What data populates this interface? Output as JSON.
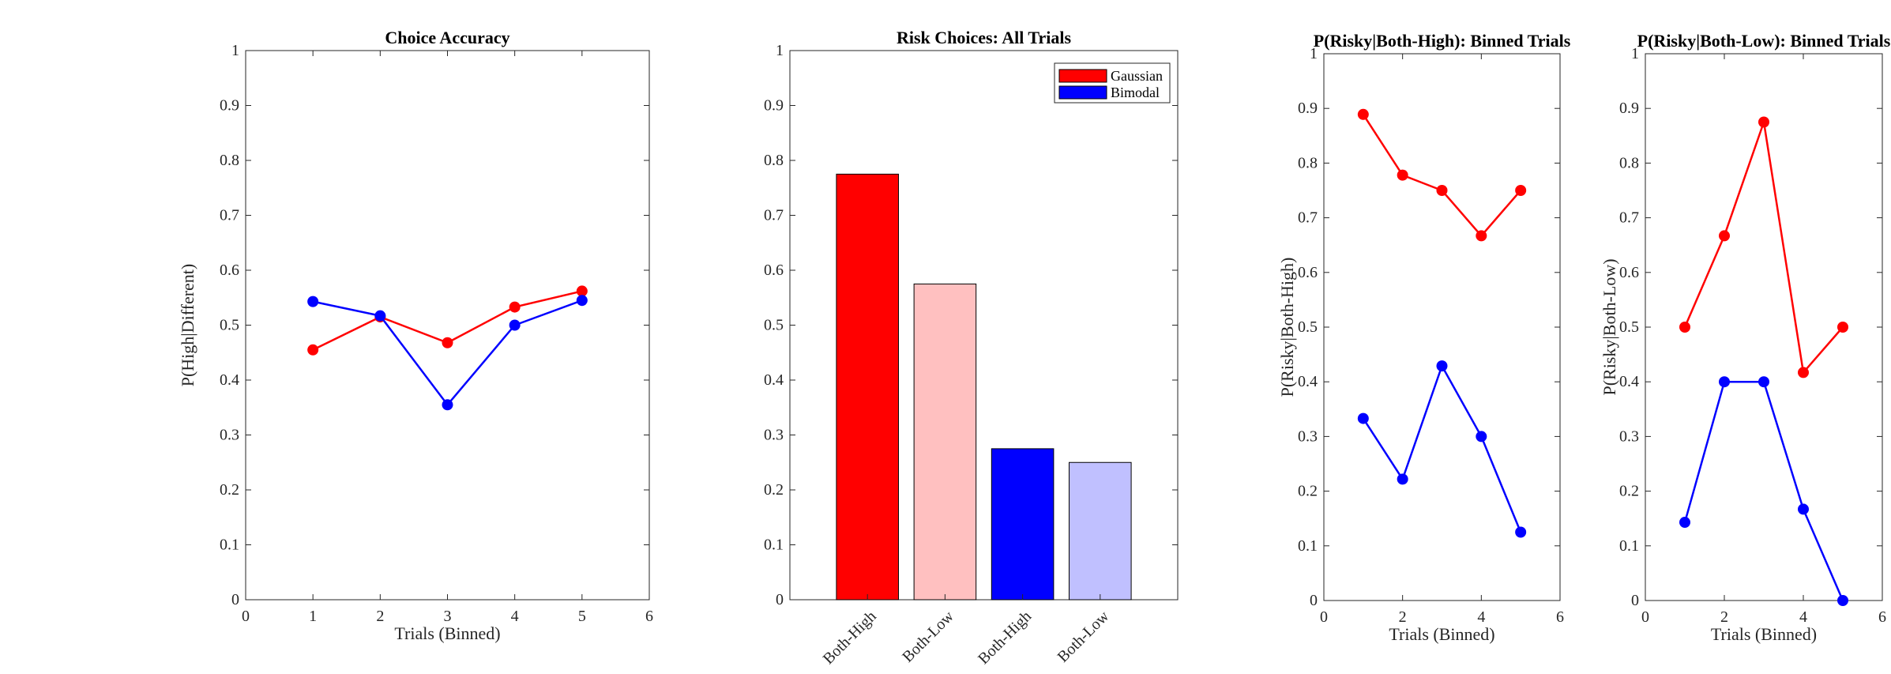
{
  "chart_data": [
    {
      "type": "line",
      "title": "Choice Accuracy",
      "xlabel": "Trials (Binned)",
      "ylabel": "P(High|Different)",
      "xlim": [
        0,
        6
      ],
      "ylim": [
        0,
        1
      ],
      "xticks": [
        "0",
        "1",
        "2",
        "3",
        "4",
        "5",
        "6"
      ],
      "yticks": [
        "0",
        "0.1",
        "0.2",
        "0.3",
        "0.4",
        "0.5",
        "0.6",
        "0.7",
        "0.8",
        "0.9",
        "1"
      ],
      "x": [
        1,
        2,
        3,
        4,
        5
      ],
      "series": [
        {
          "color": "#ff0000",
          "values": [
            0.455,
            0.515,
            0.468,
            0.533,
            0.562
          ]
        },
        {
          "color": "#0000ff",
          "values": [
            0.543,
            0.517,
            0.355,
            0.5,
            0.545
          ]
        }
      ]
    },
    {
      "type": "bar",
      "title": "Risk Choices: All Trials",
      "ylim": [
        0,
        1
      ],
      "yticks": [
        "0",
        "0.1",
        "0.2",
        "0.3",
        "0.4",
        "0.5",
        "0.6",
        "0.7",
        "0.8",
        "0.9",
        "1"
      ],
      "categories": [
        "Both-High",
        "Both-Low",
        "Both-High",
        "Both-Low"
      ],
      "values": [
        0.775,
        0.575,
        0.275,
        0.25
      ],
      "colors": [
        "#ff0000",
        "#ffc0c0",
        "#0000ff",
        "#c0c0ff"
      ],
      "legend": {
        "position": "top-right",
        "entries": [
          {
            "label": "Gaussian",
            "color": "#ff0000"
          },
          {
            "label": "Bimodal",
            "color": "#0000ff"
          }
        ]
      }
    },
    {
      "type": "line",
      "title": "P(Risky|Both-High): Binned Trials",
      "xlabel": "Trials (Binned)",
      "ylabel": "P(Risky|Both-High)",
      "xlim": [
        0,
        6
      ],
      "ylim": [
        0,
        1
      ],
      "xticks": [
        "0",
        "2",
        "4",
        "6"
      ],
      "yticks": [
        "0",
        "0.1",
        "0.2",
        "0.3",
        "0.4",
        "0.5",
        "0.6",
        "0.7",
        "0.8",
        "0.9",
        "1"
      ],
      "x": [
        1,
        2,
        3,
        4,
        5
      ],
      "series": [
        {
          "color": "#ff0000",
          "values": [
            0.889,
            0.778,
            0.75,
            0.667,
            0.75
          ]
        },
        {
          "color": "#0000ff",
          "values": [
            0.333,
            0.222,
            0.429,
            0.3,
            0.125
          ]
        }
      ]
    },
    {
      "type": "line",
      "title": "P(Risky|Both-Low): Binned Trials",
      "xlabel": "Trials (Binned)",
      "ylabel": "P(Risky|Both-Low)",
      "xlim": [
        0,
        6
      ],
      "ylim": [
        0,
        1
      ],
      "xticks": [
        "0",
        "2",
        "4",
        "6"
      ],
      "yticks": [
        "0",
        "0.1",
        "0.2",
        "0.3",
        "0.4",
        "0.5",
        "0.6",
        "0.7",
        "0.8",
        "0.9",
        "1"
      ],
      "x": [
        1,
        2,
        3,
        4,
        5
      ],
      "series": [
        {
          "color": "#ff0000",
          "values": [
            0.5,
            0.667,
            0.875,
            0.417,
            0.5
          ]
        },
        {
          "color": "#0000ff",
          "values": [
            0.143,
            0.4,
            0.4,
            0.167,
            0.0
          ]
        }
      ]
    }
  ]
}
